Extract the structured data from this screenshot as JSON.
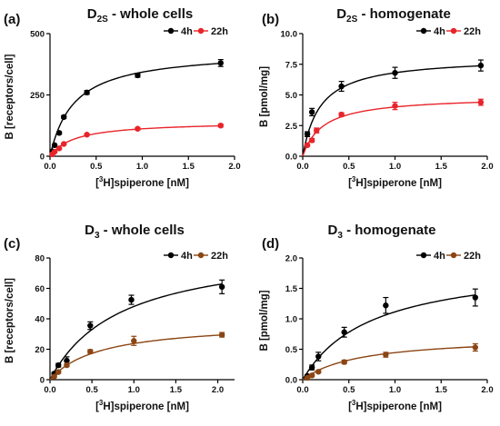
{
  "chart_data": [
    {
      "type": "scatter",
      "panel_label": "(a)",
      "title": "D2S - whole cells",
      "title_main": "D",
      "title_sub": "2S",
      "title_rest": " - whole cells",
      "xlabel_main": "spiperone [nM]",
      "xlabel_sup": "3",
      "xlabel_pre": "[",
      "xlabel_mid": "H]",
      "ylabel": "B [receptors/cell]",
      "xlim": [
        0,
        2.0
      ],
      "ylim": [
        0,
        500
      ],
      "xticks": [
        "0.0",
        "0.5",
        "1.0",
        "1.5",
        "2.0"
      ],
      "yticks": [
        "0",
        "250",
        "500"
      ],
      "legend_position": "top-right",
      "series": [
        {
          "name": "4h",
          "color": "#000000",
          "x": [
            0.025,
            0.05,
            0.1,
            0.15,
            0.4,
            0.95,
            1.85
          ],
          "y": [
            20,
            45,
            95,
            160,
            260,
            330,
            380
          ],
          "err": [
            3,
            4,
            5,
            6,
            8,
            8,
            14
          ],
          "bmax": 432,
          "kd": 0.26
        },
        {
          "name": "22h",
          "color": "#e8242b",
          "x": [
            0.025,
            0.05,
            0.1,
            0.15,
            0.4,
            0.95,
            1.85
          ],
          "y": [
            8,
            18,
            32,
            50,
            88,
            112,
            125
          ],
          "err": [
            2,
            2,
            3,
            3,
            4,
            5,
            6
          ],
          "bmax": 142,
          "kd": 0.27
        }
      ]
    },
    {
      "type": "scatter",
      "panel_label": "(b)",
      "title": "D2S - homogenate",
      "title_main": "D",
      "title_sub": "2S",
      "title_rest": " - homogenate",
      "xlabel_main": "spiperone [nM]",
      "xlabel_sup": "3",
      "xlabel_pre": "[",
      "xlabel_mid": "H]",
      "ylabel": "B [pmol/mg]",
      "xlim": [
        0,
        2.0
      ],
      "ylim": [
        0,
        10
      ],
      "xticks": [
        "0.0",
        "0.5",
        "1.0",
        "1.5",
        "2.0"
      ],
      "yticks": [
        "0.0",
        "2.5",
        "5.0",
        "7.5",
        "10.0"
      ],
      "legend_position": "top-right",
      "series": [
        {
          "name": "4h",
          "color": "#000000",
          "x": [
            0.05,
            0.1,
            0.42,
            1.0,
            1.93
          ],
          "y": [
            1.8,
            3.6,
            5.7,
            6.8,
            7.4
          ],
          "err": [
            0.2,
            0.3,
            0.4,
            0.45,
            0.45
          ],
          "bmax": 8.1,
          "kd": 0.19
        },
        {
          "name": "22h",
          "color": "#e8242b",
          "x": [
            0.05,
            0.1,
            0.15,
            0.42,
            1.0,
            1.93
          ],
          "y": [
            0.9,
            1.3,
            2.1,
            3.4,
            4.1,
            4.4
          ],
          "err": [
            0.1,
            0.15,
            0.2,
            0.15,
            0.3,
            0.25
          ],
          "bmax": 4.9,
          "kd": 0.22
        }
      ]
    },
    {
      "type": "scatter",
      "panel_label": "(c)",
      "title": "D3 - whole cells",
      "title_main": "D",
      "title_sub": "3",
      "title_rest": " - whole cells",
      "xlabel_main": "spiperone [nM]",
      "xlabel_sup": "3",
      "xlabel_pre": "[",
      "xlabel_mid": "H]",
      "ylabel": "B [receptors/cell]",
      "xlim": [
        0,
        2.2
      ],
      "ylim": [
        0,
        80
      ],
      "xticks": [
        "0.0",
        "0.5",
        "1.0",
        "1.5",
        "2.0"
      ],
      "yticks": [
        "0",
        "20",
        "40",
        "60",
        "80"
      ],
      "legend_position": "top-right",
      "series": [
        {
          "name": "4h",
          "color": "#000000",
          "x": [
            0.05,
            0.1,
            0.2,
            0.48,
            0.97,
            2.05
          ],
          "y": [
            4,
            9.5,
            12.5,
            35.5,
            52.5,
            61
          ],
          "err": [
            0.8,
            1.2,
            2.5,
            2.5,
            3,
            4.5
          ],
          "bmax": 89,
          "kd": 0.85
        },
        {
          "name": "22h",
          "color": "#8b4513",
          "x": [
            0.05,
            0.1,
            0.2,
            0.48,
            1.0,
            2.05
          ],
          "y": [
            2,
            5,
            9.5,
            18.5,
            25.5,
            29.5
          ],
          "err": [
            0.5,
            0.8,
            1,
            1.2,
            3,
            1.5
          ],
          "bmax": 38,
          "kd": 0.6
        }
      ]
    },
    {
      "type": "scatter",
      "panel_label": "(d)",
      "title": "D3 - homogenate",
      "title_main": "D",
      "title_sub": "3",
      "title_rest": " - homogenate",
      "xlabel_main": "spiperone [nM]",
      "xlabel_sup": "3",
      "xlabel_pre": "[",
      "xlabel_mid": "H]",
      "ylabel": "B [pmol/mg]",
      "xlim": [
        0,
        2.0
      ],
      "ylim": [
        0,
        2.0
      ],
      "xticks": [
        "0.0",
        "0.5",
        "1.0",
        "1.5",
        "2.0"
      ],
      "yticks": [
        "0.0",
        "0.5",
        "1.0",
        "1.5",
        "2.0"
      ],
      "legend_position": "top-right",
      "series": [
        {
          "name": "4h",
          "color": "#000000",
          "x": [
            0.05,
            0.1,
            0.17,
            0.45,
            0.9,
            1.87
          ],
          "y": [
            0.06,
            0.2,
            0.38,
            0.78,
            1.22,
            1.35
          ],
          "err": [
            0.02,
            0.04,
            0.07,
            0.08,
            0.13,
            0.14
          ],
          "bmax": 1.95,
          "kd": 0.75
        },
        {
          "name": "22h",
          "color": "#8b4513",
          "x": [
            0.05,
            0.1,
            0.17,
            0.45,
            0.9,
            1.87
          ],
          "y": [
            0.03,
            0.07,
            0.13,
            0.29,
            0.41,
            0.53
          ],
          "err": [
            0.01,
            0.02,
            0.02,
            0.03,
            0.04,
            0.06
          ],
          "bmax": 0.72,
          "kd": 0.62
        }
      ]
    }
  ]
}
